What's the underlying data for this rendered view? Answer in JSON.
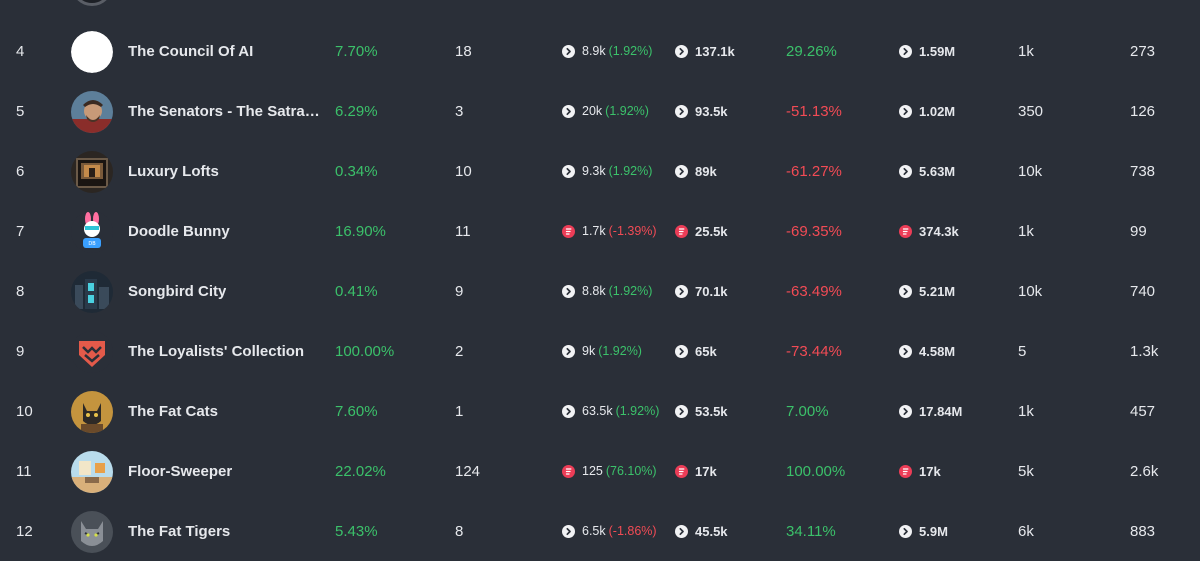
{
  "colors": {
    "background": "#2a2f38",
    "positive": "#3bc16a",
    "negative": "#f24b55",
    "text": "#e6e8ec"
  },
  "rows": [
    {
      "rank": "4",
      "name": "The Council Of AI",
      "pct": "7.70%",
      "count": "18",
      "floor_icon": "light-chevron-coin-icon",
      "floor": "8.9k",
      "floor_change": "(1.92%)",
      "floor_change_sign": "positive",
      "vol_icon": "light-chevron-coin-icon",
      "vol": "137.1k",
      "change": "29.26%",
      "change_sign": "positive",
      "mcap_icon": "light-chevron-coin-icon",
      "mcap": "1.59M",
      "owners": "1k",
      "supply": "273"
    },
    {
      "rank": "5",
      "name": "The Senators - The Satraps C...",
      "pct": "6.29%",
      "count": "3",
      "floor_icon": "light-chevron-coin-icon",
      "floor": "20k",
      "floor_change": "(1.92%)",
      "floor_change_sign": "positive",
      "vol_icon": "light-chevron-coin-icon",
      "vol": "93.5k",
      "change": "-51.13%",
      "change_sign": "negative",
      "mcap_icon": "light-chevron-coin-icon",
      "mcap": "1.02M",
      "owners": "350",
      "supply": "126"
    },
    {
      "rank": "6",
      "name": "Luxury Lofts",
      "pct": "0.34%",
      "count": "10",
      "floor_icon": "light-chevron-coin-icon",
      "floor": "9.3k",
      "floor_change": "(1.92%)",
      "floor_change_sign": "positive",
      "vol_icon": "light-chevron-coin-icon",
      "vol": "89k",
      "change": "-61.27%",
      "change_sign": "negative",
      "mcap_icon": "light-chevron-coin-icon",
      "mcap": "5.63M",
      "owners": "10k",
      "supply": "738"
    },
    {
      "rank": "7",
      "name": "Doodle Bunny",
      "pct": "16.90%",
      "count": "11",
      "floor_icon": "red-f-coin-icon",
      "floor": "1.7k",
      "floor_change": "(-1.39%)",
      "floor_change_sign": "negative",
      "vol_icon": "red-f-coin-icon",
      "vol": "25.5k",
      "change": "-69.35%",
      "change_sign": "negative",
      "mcap_icon": "red-f-coin-icon",
      "mcap": "374.3k",
      "owners": "1k",
      "supply": "99"
    },
    {
      "rank": "8",
      "name": "Songbird City",
      "pct": "0.41%",
      "count": "9",
      "floor_icon": "light-chevron-coin-icon",
      "floor": "8.8k",
      "floor_change": "(1.92%)",
      "floor_change_sign": "positive",
      "vol_icon": "light-chevron-coin-icon",
      "vol": "70.1k",
      "change": "-63.49%",
      "change_sign": "negative",
      "mcap_icon": "light-chevron-coin-icon",
      "mcap": "5.21M",
      "owners": "10k",
      "supply": "740"
    },
    {
      "rank": "9",
      "name": "The Loyalists' Collection",
      "pct": "100.00%",
      "count": "2",
      "floor_icon": "light-chevron-coin-icon",
      "floor": "9k",
      "floor_change": "(1.92%)",
      "floor_change_sign": "positive",
      "vol_icon": "light-chevron-coin-icon",
      "vol": "65k",
      "change": "-73.44%",
      "change_sign": "negative",
      "mcap_icon": "light-chevron-coin-icon",
      "mcap": "4.58M",
      "owners": "5",
      "supply": "1.3k"
    },
    {
      "rank": "10",
      "name": "The Fat Cats",
      "pct": "7.60%",
      "count": "1",
      "floor_icon": "light-chevron-coin-icon",
      "floor": "63.5k",
      "floor_change": "(1.92%)",
      "floor_change_sign": "positive",
      "vol_icon": "light-chevron-coin-icon",
      "vol": "53.5k",
      "change": "7.00%",
      "change_sign": "positive",
      "mcap_icon": "light-chevron-coin-icon",
      "mcap": "17.84M",
      "owners": "1k",
      "supply": "457"
    },
    {
      "rank": "11",
      "name": "Floor-Sweeper",
      "pct": "22.02%",
      "count": "124",
      "floor_icon": "red-f-coin-icon",
      "floor": "125",
      "floor_change": "(76.10%)",
      "floor_change_sign": "positive",
      "vol_icon": "red-f-coin-icon",
      "vol": "17k",
      "change": "100.00%",
      "change_sign": "positive",
      "mcap_icon": "red-f-coin-icon",
      "mcap": "17k",
      "owners": "5k",
      "supply": "2.6k"
    },
    {
      "rank": "12",
      "name": "The Fat Tigers",
      "pct": "5.43%",
      "count": "8",
      "floor_icon": "light-chevron-coin-icon",
      "floor": "6.5k",
      "floor_change": "(-1.86%)",
      "floor_change_sign": "negative",
      "vol_icon": "light-chevron-coin-icon",
      "vol": "45.5k",
      "change": "34.11%",
      "change_sign": "positive",
      "mcap_icon": "light-chevron-coin-icon",
      "mcap": "5.9M",
      "owners": "6k",
      "supply": "883"
    }
  ]
}
